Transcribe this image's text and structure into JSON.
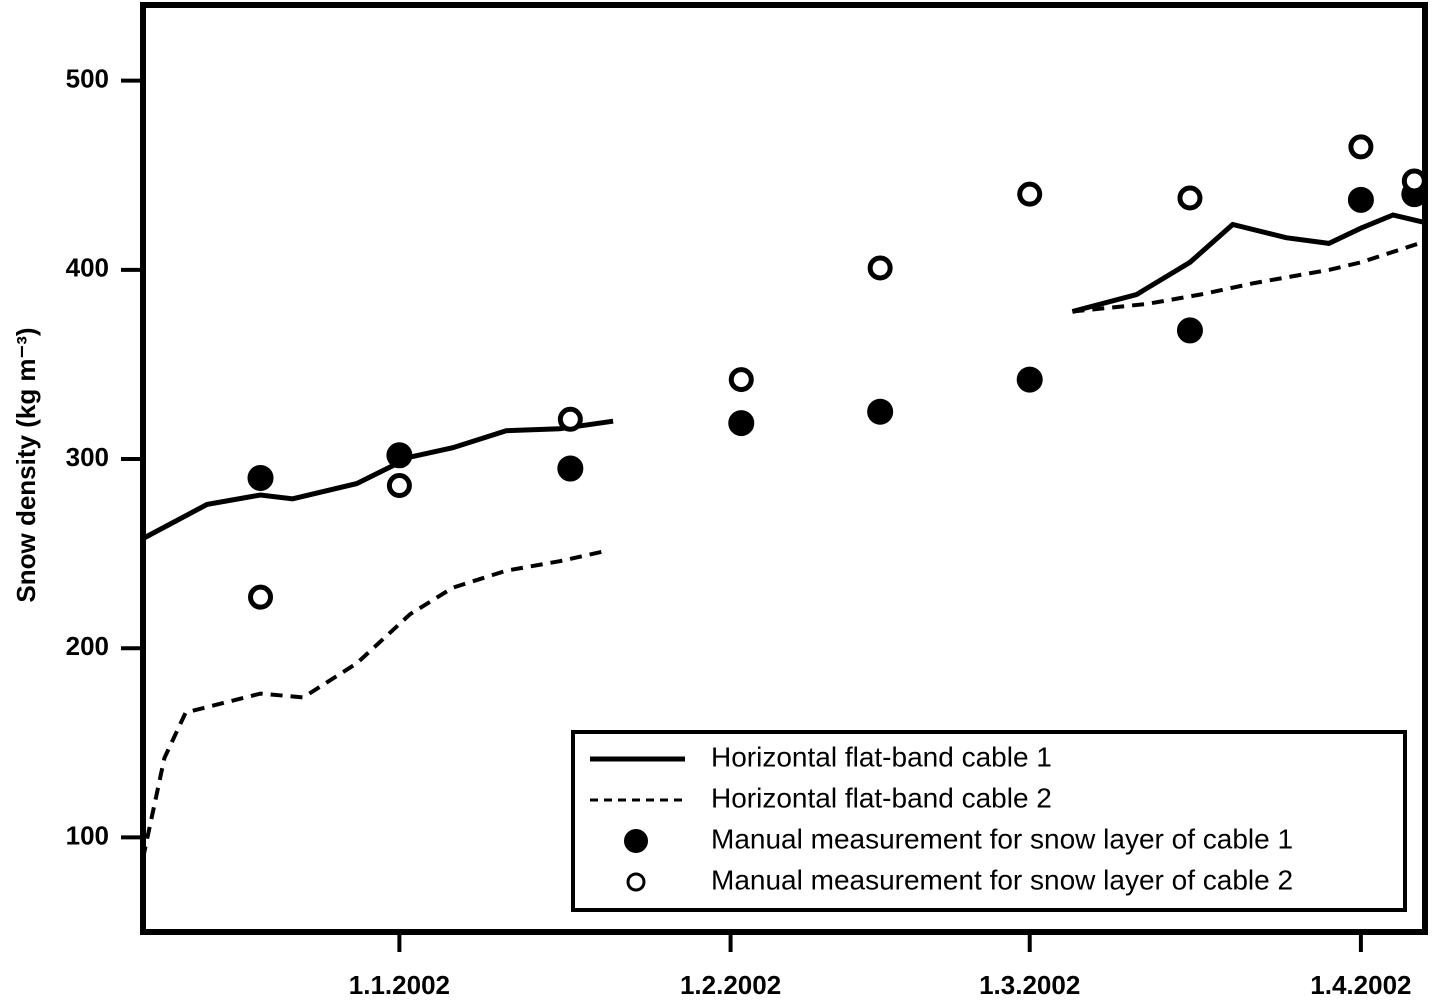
{
  "chart_data": {
    "type": "line",
    "y_label": "Snow density (kg m⁻³)",
    "xlim": [
      "2001-12-08",
      "2002-04-07"
    ],
    "xticks": [
      {
        "value": "2002-01-01",
        "label": "1.1.2002"
      },
      {
        "value": "2002-02-01",
        "label": "1.2.2002"
      },
      {
        "value": "2002-03-01",
        "label": "1.3.2002"
      },
      {
        "value": "2002-04-01",
        "label": "1.4.2002"
      }
    ],
    "ylim": [
      50,
      540
    ],
    "yticks": [
      100,
      200,
      300,
      400,
      500
    ],
    "legend": "lower right",
    "series": [
      {
        "name": "Horizontal flat-band cable 1",
        "color": "#000000",
        "style": "solid",
        "x": [
          "2001-12-08",
          "2001-12-14",
          "2001-12-19",
          "2001-12-22",
          "2001-12-28",
          "2002-01-02",
          "2002-01-06",
          "2002-01-11",
          "2002-01-16",
          "2002-01-21",
          "2002-02-15",
          "2002-03-05",
          "2002-03-11",
          "2002-03-16",
          "2002-03-20",
          "2002-03-25",
          "2002-03-29",
          "2002-04-01",
          "2002-04-04",
          "2002-04-07"
        ],
        "values": [
          258,
          276,
          281,
          279,
          287,
          301,
          306,
          315,
          316,
          320,
          null,
          378,
          387,
          404,
          424,
          417,
          414,
          422,
          429,
          425
        ]
      },
      {
        "name": "Horizontal flat-band cable 2",
        "color": "#000000",
        "style": "dashed",
        "x": [
          "2001-12-08",
          "2001-12-10",
          "2001-12-12",
          "2001-12-19",
          "2001-12-23",
          "2001-12-28",
          "2002-01-02",
          "2002-01-06",
          "2002-01-11",
          "2002-01-16",
          "2002-01-20",
          "2002-02-15",
          "2002-03-05",
          "2002-03-12",
          "2002-03-17",
          "2002-03-22",
          "2002-03-29",
          "2002-04-01",
          "2002-04-07"
        ],
        "values": [
          89,
          142,
          166,
          176,
          174,
          192,
          218,
          232,
          241,
          246,
          251,
          null,
          378,
          382,
          387,
          393,
          400,
          404,
          415
        ]
      },
      {
        "name": "Manual measurement for snow layer of cable 1",
        "color": "#000000",
        "style": "filled-marker",
        "x": [
          "2001-12-19",
          "2002-01-01",
          "2002-01-17",
          "2002-02-02",
          "2002-02-15",
          "2002-03-01",
          "2002-03-16",
          "2002-04-01",
          "2002-04-06"
        ],
        "values": [
          290,
          302,
          295,
          319,
          325,
          342,
          368,
          437,
          440
        ]
      },
      {
        "name": "Manual measurement for snow layer of cable 2",
        "color": "#000000",
        "style": "open-marker",
        "x": [
          "2001-12-19",
          "2002-01-01",
          "2002-01-17",
          "2002-02-02",
          "2002-02-15",
          "2002-03-01",
          "2002-03-16",
          "2002-04-01",
          "2002-04-06"
        ],
        "values": [
          227,
          286,
          321,
          342,
          401,
          440,
          438,
          465,
          447
        ]
      }
    ]
  }
}
